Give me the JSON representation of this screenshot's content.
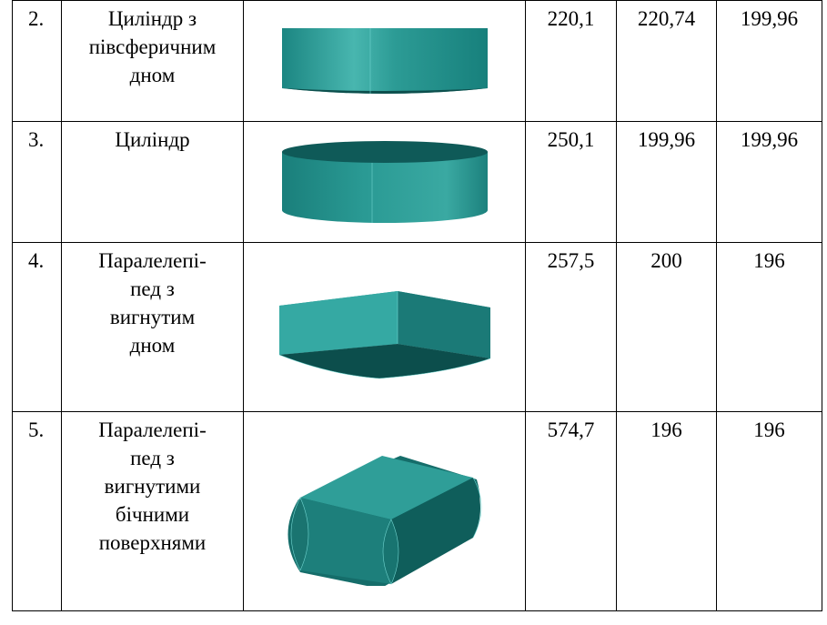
{
  "rows": [
    {
      "num": "2.",
      "name_lines": [
        "Циліндр з",
        "півсферичним",
        "дном"
      ],
      "values": [
        "220,1",
        "220,74",
        "199,96"
      ],
      "icon": "cylinder-hemispherical-bottom-icon"
    },
    {
      "num": "3.",
      "name_lines": [
        "Циліндр"
      ],
      "values": [
        "250,1",
        "199,96",
        "199,96"
      ],
      "icon": "cylinder-icon"
    },
    {
      "num": "4.",
      "name_lines": [
        "Паралелепі-",
        "пед з",
        "вигнутим",
        "дном"
      ],
      "values": [
        "257,5",
        "200",
        "196"
      ],
      "icon": "parallelepiped-curved-bottom-icon"
    },
    {
      "num": "5.",
      "name_lines": [
        "Паралелепі-",
        "пед з",
        "вигнутими",
        "бічними",
        "поверхнями"
      ],
      "values": [
        "574,7",
        "196",
        "196"
      ],
      "icon": "parallelepiped-curved-sides-icon"
    }
  ],
  "colors": {
    "teal_light": "#3aa7a0",
    "teal_mid": "#1f8a86",
    "teal_dark": "#0f5e5c",
    "teal_edge": "#7fe0dc"
  }
}
